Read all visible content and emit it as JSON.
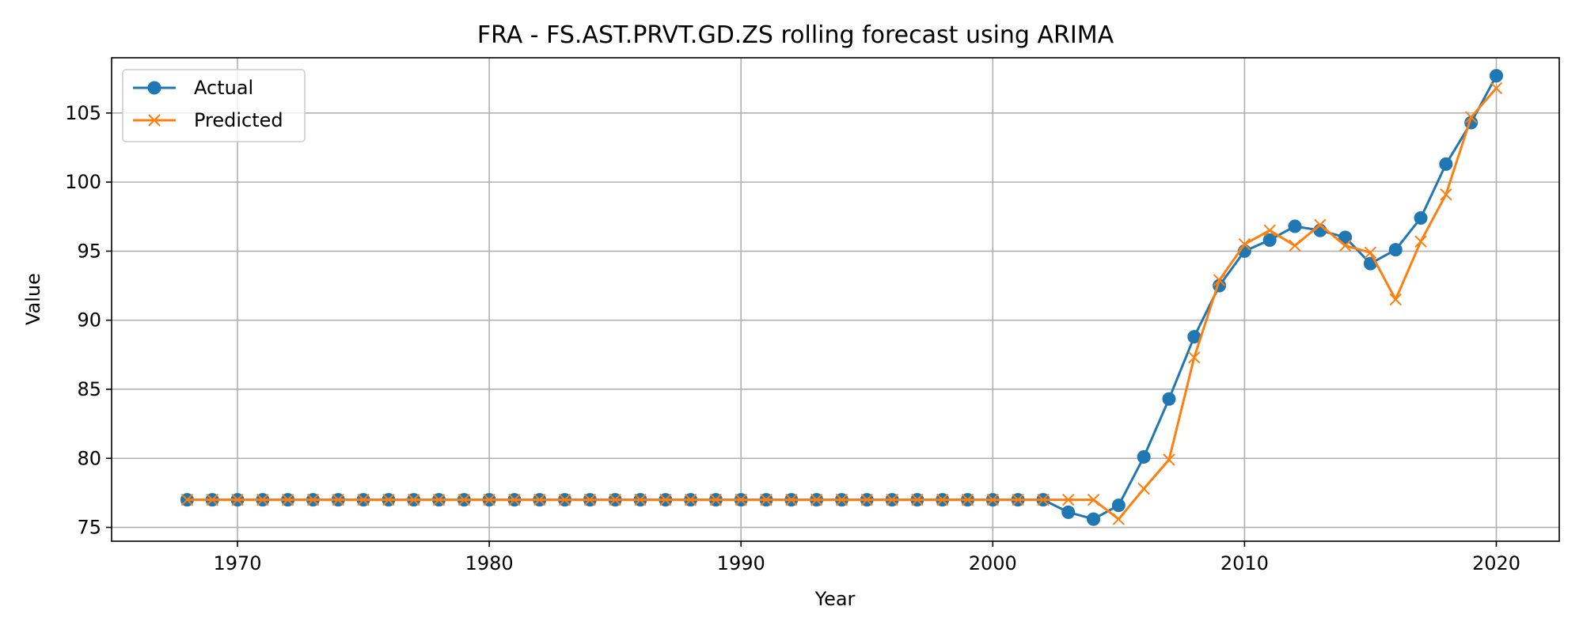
{
  "chart_data": {
    "type": "line",
    "title": "FRA - FS.AST.PRVT.GD.ZS rolling forecast using ARIMA",
    "xlabel": "Year",
    "ylabel": "Value",
    "xlim": [
      1965,
      2022.5
    ],
    "ylim": [
      74.0,
      109.0
    ],
    "xticks": [
      1970,
      1980,
      1990,
      2000,
      2010,
      2020
    ],
    "yticks": [
      75,
      80,
      85,
      90,
      95,
      100,
      105
    ],
    "grid": true,
    "legend_position": "top-left",
    "x": [
      1968,
      1969,
      1970,
      1971,
      1972,
      1973,
      1974,
      1975,
      1976,
      1977,
      1978,
      1979,
      1980,
      1981,
      1982,
      1983,
      1984,
      1985,
      1986,
      1987,
      1988,
      1989,
      1990,
      1991,
      1992,
      1993,
      1994,
      1995,
      1996,
      1997,
      1998,
      1999,
      2000,
      2001,
      2002,
      2003,
      2004,
      2005,
      2006,
      2007,
      2008,
      2009,
      2010,
      2011,
      2012,
      2013,
      2014,
      2015,
      2016,
      2017,
      2018,
      2019,
      2020
    ],
    "series": [
      {
        "name": "Actual",
        "color": "#1f77b4",
        "marker": "circle",
        "values": [
          77.0,
          77.0,
          77.0,
          77.0,
          77.0,
          77.0,
          77.0,
          77.0,
          77.0,
          77.0,
          77.0,
          77.0,
          77.0,
          77.0,
          77.0,
          77.0,
          77.0,
          77.0,
          77.0,
          77.0,
          77.0,
          77.0,
          77.0,
          77.0,
          77.0,
          77.0,
          77.0,
          77.0,
          77.0,
          77.0,
          77.0,
          77.0,
          77.0,
          77.0,
          77.0,
          76.1,
          75.6,
          76.6,
          80.1,
          84.3,
          88.8,
          92.5,
          95.0,
          95.8,
          96.8,
          96.5,
          96.0,
          94.1,
          95.1,
          97.4,
          101.3,
          104.3,
          107.7
        ]
      },
      {
        "name": "Predicted",
        "color": "#ff7f0e",
        "marker": "x",
        "values": [
          77.0,
          77.0,
          77.0,
          77.0,
          77.0,
          77.0,
          77.0,
          77.0,
          77.0,
          77.0,
          77.0,
          77.0,
          77.0,
          77.0,
          77.0,
          77.0,
          77.0,
          77.0,
          77.0,
          77.0,
          77.0,
          77.0,
          77.0,
          77.0,
          77.0,
          77.0,
          77.0,
          77.0,
          77.0,
          77.0,
          77.0,
          77.0,
          77.0,
          77.0,
          77.0,
          77.0,
          77.0,
          75.6,
          77.8,
          79.9,
          87.3,
          92.9,
          95.5,
          96.5,
          95.4,
          96.9,
          95.4,
          94.9,
          91.5,
          95.7,
          99.1,
          104.7,
          106.8
        ]
      }
    ]
  }
}
